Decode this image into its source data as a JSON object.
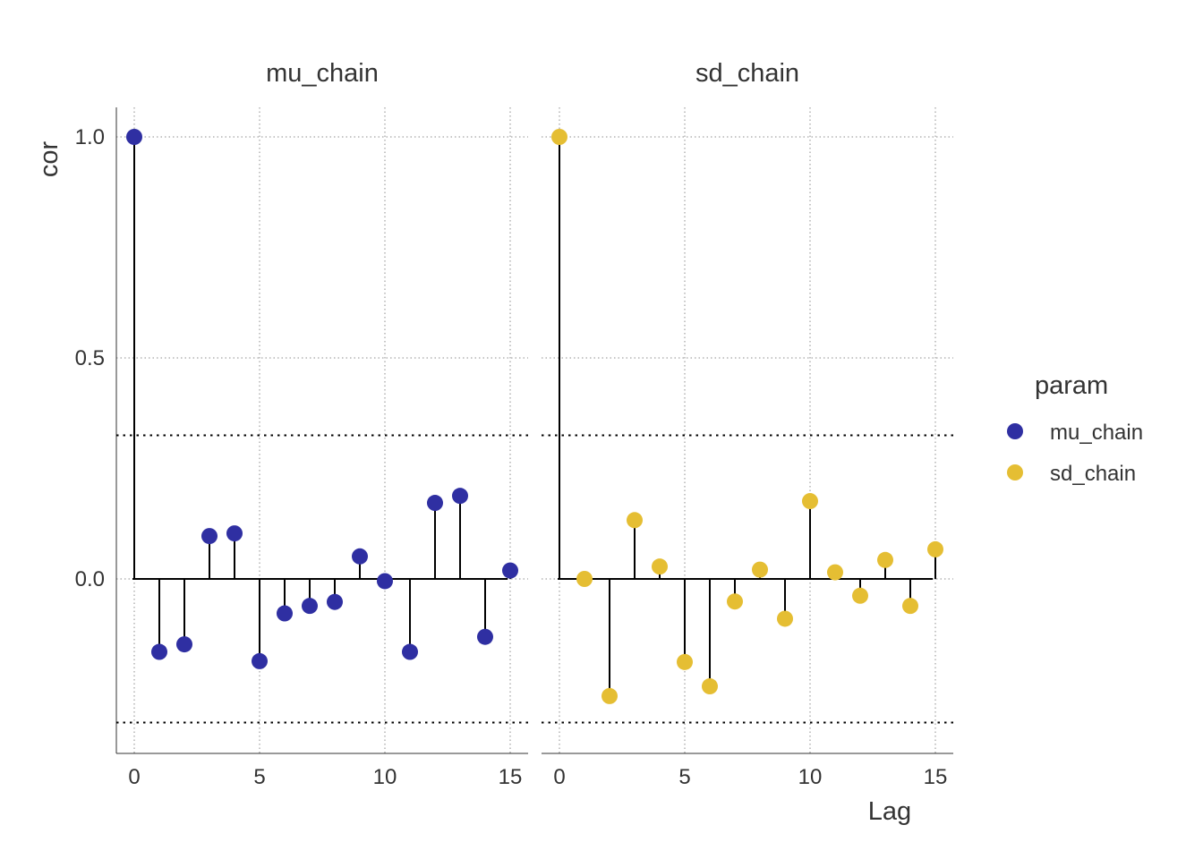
{
  "colors": {
    "mu_chain": "#2F2FA2",
    "sd_chain": "#E5BE33"
  },
  "chart_data": {
    "type": "scatter",
    "subtype": "acf-lollipop",
    "xlabel": "Lag",
    "ylabel": "cor",
    "xlim": [
      0,
      15
    ],
    "ylim": [
      -0.39,
      1.07
    ],
    "x_ticks": [
      "0",
      "5",
      "10",
      "15"
    ],
    "y_ticks": [
      "0.0",
      "0.5",
      "1.0"
    ],
    "confidence_band": 0.325,
    "grid": true,
    "legend": {
      "title": "param",
      "placement": "right",
      "entries": [
        "mu_chain",
        "sd_chain"
      ]
    },
    "facets": [
      {
        "name": "mu_chain",
        "x": [
          0,
          1,
          2,
          3,
          4,
          5,
          6,
          7,
          8,
          9,
          10,
          11,
          12,
          13,
          14,
          15
        ],
        "values": [
          1.0,
          -0.165,
          -0.148,
          0.097,
          0.103,
          -0.186,
          -0.078,
          -0.061,
          -0.052,
          0.051,
          -0.005,
          -0.165,
          0.172,
          0.188,
          -0.131,
          0.019
        ]
      },
      {
        "name": "sd_chain",
        "x": [
          0,
          1,
          2,
          3,
          4,
          5,
          6,
          7,
          8,
          9,
          10,
          11,
          12,
          13,
          14,
          15
        ],
        "values": [
          1.0,
          0.0,
          -0.265,
          0.133,
          0.028,
          -0.188,
          -0.243,
          -0.051,
          0.021,
          -0.09,
          0.176,
          0.015,
          -0.038,
          0.043,
          -0.061,
          0.067
        ]
      }
    ]
  }
}
